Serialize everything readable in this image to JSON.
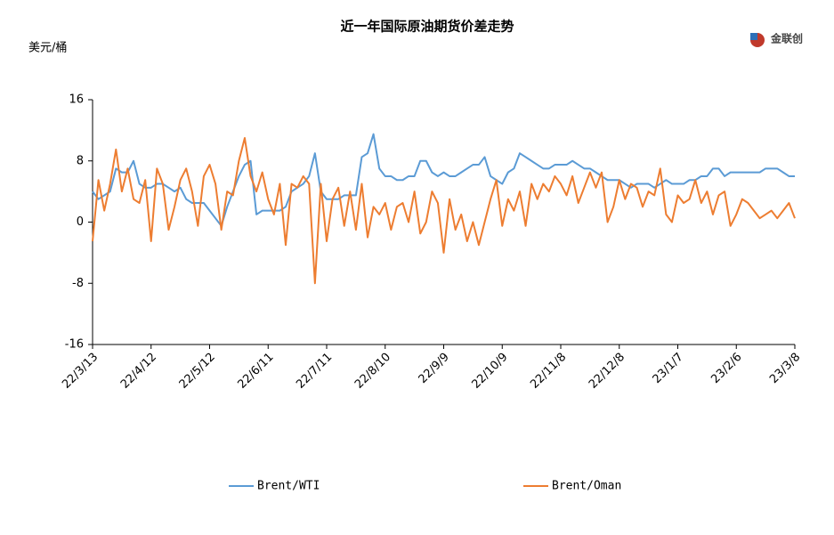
{
  "chart_data": {
    "type": "line",
    "title": "近一年国际原油期货价差走势",
    "y_axis_label": "美元/桶",
    "logo": "金联创",
    "categories": [
      "22/3/13",
      null,
      null,
      null,
      null,
      null,
      null,
      null,
      null,
      null,
      "22/4/12",
      null,
      null,
      null,
      null,
      null,
      null,
      null,
      null,
      null,
      "22/5/12",
      null,
      null,
      null,
      null,
      null,
      null,
      null,
      null,
      null,
      "22/6/11",
      null,
      null,
      null,
      null,
      null,
      null,
      null,
      null,
      null,
      "22/7/11",
      null,
      null,
      null,
      null,
      null,
      null,
      null,
      null,
      null,
      "22/8/10",
      null,
      null,
      null,
      null,
      null,
      null,
      null,
      null,
      null,
      "22/9/9",
      null,
      null,
      null,
      null,
      null,
      null,
      null,
      null,
      null,
      "22/10/9",
      null,
      null,
      null,
      null,
      null,
      null,
      null,
      null,
      null,
      "22/11/8",
      null,
      null,
      null,
      null,
      null,
      null,
      null,
      null,
      null,
      "22/12/8",
      null,
      null,
      null,
      null,
      null,
      null,
      null,
      null,
      null,
      "23/1/7",
      null,
      null,
      null,
      null,
      null,
      null,
      null,
      null,
      null,
      "23/2/6",
      null,
      null,
      null,
      null,
      null,
      null,
      null,
      null,
      null,
      "23/3/8"
    ],
    "series": [
      {
        "name": "Brent/WTI",
        "color": "#5b9bd5",
        "values": [
          4,
          3,
          3.5,
          4,
          7,
          6.5,
          6.5,
          8,
          5,
          4.5,
          4.5,
          5,
          5,
          4.5,
          4,
          4.5,
          3,
          2.5,
          2.5,
          2.5,
          1.5,
          0.5,
          -0.5,
          2,
          4,
          6,
          7.5,
          8,
          1,
          1.5,
          1.5,
          1.5,
          1.5,
          2,
          4,
          4.5,
          5,
          6,
          9,
          4,
          3,
          3,
          3,
          3.5,
          3.5,
          3.5,
          8.5,
          9,
          11.5,
          7,
          6,
          6,
          5.5,
          5.5,
          6,
          6,
          8,
          8,
          6.5,
          6,
          6.5,
          6,
          6,
          6.5,
          7,
          7.5,
          7.5,
          8.5,
          6,
          5.5,
          5,
          6.5,
          7,
          9,
          8.5,
          8,
          7.5,
          7,
          7,
          7.5,
          7.5,
          7.5,
          8,
          7.5,
          7,
          7,
          6.5,
          6,
          5.5,
          5.5,
          5.5,
          5,
          4.5,
          5,
          5,
          5,
          4.5,
          5,
          5.5,
          5,
          5,
          5,
          5.5,
          5.5,
          6,
          6,
          7,
          7,
          6,
          6.5,
          6.5,
          6.5,
          6.5,
          6.5,
          6.5,
          7,
          7,
          7,
          6.5,
          6,
          6
        ]
      },
      {
        "name": "Brent/Oman",
        "color": "#ed7d31",
        "values": [
          -2.5,
          5.5,
          1.5,
          5,
          9.5,
          4,
          7,
          3,
          2.5,
          5.5,
          -2.5,
          7,
          5,
          -1,
          2,
          5.5,
          7,
          4,
          -0.5,
          6,
          7.5,
          5,
          -1,
          4,
          3.5,
          8,
          11,
          6,
          4,
          6.5,
          3,
          1,
          5,
          -3,
          5,
          4.5,
          6,
          5,
          -8,
          5,
          -2.5,
          3,
          4.5,
          -0.5,
          4,
          -1,
          5,
          -2,
          2,
          1,
          2.5,
          -1,
          2,
          2.5,
          0,
          4,
          -1.5,
          0,
          4,
          2.5,
          -4,
          3,
          -1,
          1,
          -2.5,
          0,
          -3,
          0,
          3,
          5.5,
          -0.5,
          3,
          1.5,
          4,
          -0.5,
          5,
          3,
          5,
          4,
          6,
          5,
          3.5,
          6,
          2.5,
          4.5,
          6.5,
          4.5,
          6.5,
          0,
          2,
          5.5,
          3,
          5,
          4.5,
          2,
          4,
          3.5,
          7,
          1,
          0,
          3.5,
          2.5,
          3,
          5.5,
          2.5,
          4,
          1,
          3.5,
          4,
          -0.5,
          1,
          3,
          2.5,
          1.5,
          0.5,
          1,
          1.5,
          0.5,
          1.5,
          2.5,
          0.5
        ]
      }
    ],
    "ylim": [
      -16,
      16
    ],
    "yticks": [
      -16,
      -8,
      0,
      8,
      16
    ],
    "grid": false
  }
}
